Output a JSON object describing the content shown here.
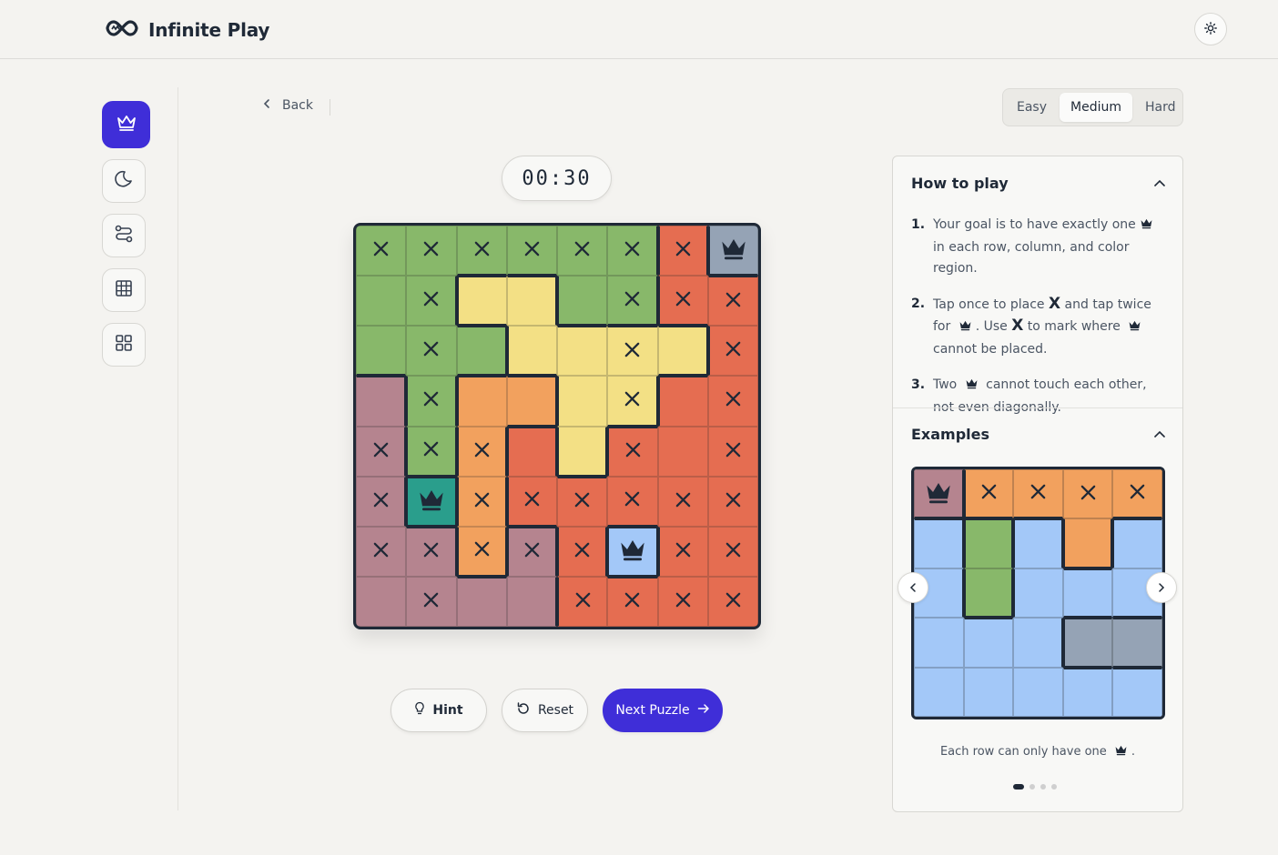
{
  "app": {
    "title": "Infinite Play"
  },
  "nav": {
    "back_label": "Back"
  },
  "difficulty": {
    "options": [
      "Easy",
      "Medium",
      "Hard"
    ],
    "selected": "Medium"
  },
  "timer": {
    "value": "00:30"
  },
  "colors": {
    "green": "#88b86a",
    "yellow": "#f3e085",
    "red": "#e56d51",
    "orange": "#f2a15e",
    "mauve": "#b5848f",
    "slate": "#95a3b5",
    "teal": "#2a9e8c",
    "lightblue": "#a3c8f8",
    "accent": "#3f2ed8"
  },
  "board": {
    "regions": [
      [
        "green",
        "green",
        "green",
        "green",
        "green",
        "green",
        "red",
        "slate"
      ],
      [
        "green",
        "green",
        "yellow",
        "yellow",
        "green",
        "green",
        "red",
        "red"
      ],
      [
        "green",
        "green",
        "green",
        "yellow",
        "yellow",
        "yellow",
        "yellow",
        "red"
      ],
      [
        "mauve",
        "green",
        "orange",
        "orange",
        "yellow",
        "yellow",
        "red",
        "red"
      ],
      [
        "mauve",
        "green",
        "orange",
        "red",
        "yellow",
        "red",
        "red",
        "red"
      ],
      [
        "mauve",
        "teal",
        "orange",
        "red",
        "red",
        "red",
        "red",
        "red"
      ],
      [
        "mauve",
        "mauve",
        "orange",
        "mauve",
        "red",
        "lightblue",
        "red",
        "red"
      ],
      [
        "mauve",
        "mauve",
        "mauve",
        "mauve",
        "red",
        "red",
        "red",
        "red"
      ]
    ],
    "marks": [
      [
        "x",
        "x",
        "x",
        "x",
        "x",
        "x",
        "x",
        "queen"
      ],
      [
        "",
        "x",
        "",
        "",
        "",
        "x",
        "x",
        "x"
      ],
      [
        "",
        "x",
        "",
        "",
        "",
        "x",
        "",
        "x"
      ],
      [
        "",
        "x",
        "",
        "",
        "",
        "x",
        "",
        "x"
      ],
      [
        "x",
        "x",
        "x",
        "",
        "",
        "x",
        "",
        "x"
      ],
      [
        "x",
        "queen",
        "x",
        "x",
        "x",
        "x",
        "x",
        "x"
      ],
      [
        "x",
        "x",
        "x",
        "x",
        "x",
        "queen",
        "x",
        "x"
      ],
      [
        "",
        "x",
        "",
        "",
        "x",
        "x",
        "x",
        "x"
      ]
    ]
  },
  "actions": {
    "hint_label": "Hint",
    "reset_label": "Reset",
    "next_label": "Next Puzzle"
  },
  "how_to_play": {
    "title": "How to play",
    "steps": [
      {
        "num": "1.",
        "a": "Your goal is to have exactly one",
        "b": "in each row, column, and color region."
      },
      {
        "num": "2.",
        "a": "Tap once to place",
        "x1": "X",
        "b": "and tap twice for",
        "c": ". Use",
        "x2": "X",
        "d": "to mark where",
        "e": "cannot be placed."
      },
      {
        "num": "3.",
        "a": "Two",
        "b": "cannot touch each other, not even diagonally."
      }
    ]
  },
  "examples": {
    "title": "Examples",
    "caption": "Each row can only have one",
    "caption_end": ".",
    "regions": [
      [
        "mauve",
        "orange",
        "orange",
        "orange",
        "orange"
      ],
      [
        "lightblue",
        "green",
        "lightblue",
        "orange",
        "lightblue"
      ],
      [
        "lightblue",
        "green",
        "lightblue",
        "lightblue",
        "lightblue"
      ],
      [
        "lightblue",
        "lightblue",
        "lightblue",
        "slate",
        "slate"
      ],
      [
        "lightblue",
        "lightblue",
        "lightblue",
        "lightblue",
        "lightblue"
      ]
    ],
    "marks": [
      [
        "queen",
        "x",
        "x",
        "x",
        "x"
      ],
      [
        "",
        "",
        "",
        "",
        ""
      ],
      [
        "",
        "",
        "",
        "",
        ""
      ],
      [
        "",
        "",
        "",
        "",
        ""
      ],
      [
        "",
        "",
        "",
        "",
        ""
      ]
    ],
    "page_count": 4,
    "active_page": 1
  },
  "icons": {
    "logo": "infinity-logo-icon",
    "theme": "sun-icon",
    "sidebar": [
      "crown-icon",
      "moon-icon",
      "route-icon",
      "grid-icon",
      "apps-icon"
    ]
  }
}
